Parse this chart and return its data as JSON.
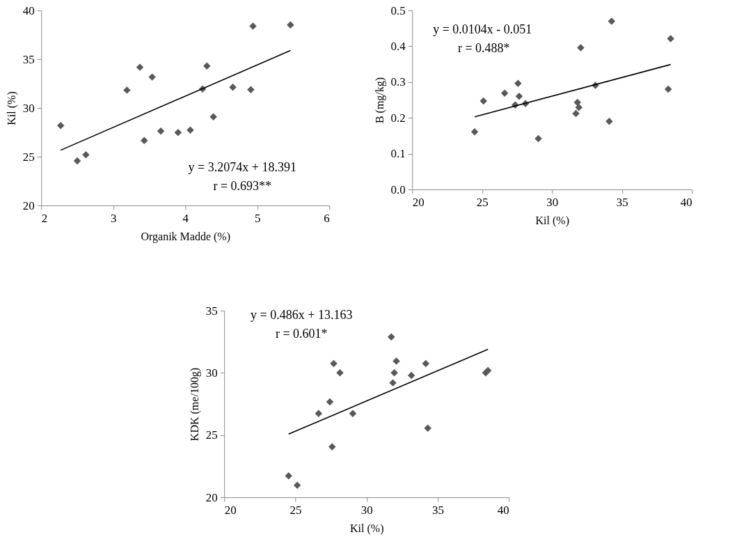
{
  "chart_data": [
    {
      "type": "scatter",
      "xlabel": "Organik Madde (%)",
      "ylabel": "Kil (%)",
      "xlim": [
        2,
        6
      ],
      "ylim": [
        20,
        40
      ],
      "xticks": [
        2,
        3,
        4,
        5,
        6
      ],
      "yticks": [
        20,
        25,
        30,
        35,
        40
      ],
      "marker": "diamond",
      "annotations": [
        "y = 3.2074x + 18.391",
        "r = 0.693**"
      ],
      "series": [
        {
          "color": "#595959",
          "x": [
            2.27,
            2.5,
            2.62,
            3.19,
            3.37,
            3.43,
            3.54,
            3.66,
            3.9,
            4.07,
            4.24,
            4.3,
            4.39,
            4.66,
            4.91,
            4.94,
            5.46
          ],
          "values": [
            28.19,
            24.57,
            25.19,
            31.83,
            34.17,
            26.66,
            33.17,
            27.62,
            27.48,
            27.74,
            31.95,
            34.31,
            29.09,
            32.12,
            31.88,
            38.4,
            38.52
          ]
        },
        {
          "type": "line",
          "marker": "none",
          "color": "#000000",
          "x": [
            2.27,
            5.46
          ],
          "values": [
            25.67,
            35.9
          ]
        }
      ]
    },
    {
      "type": "scatter",
      "xlabel": "Kil (%)",
      "ylabel": "B (mg/kg)",
      "xlim": [
        20,
        40
      ],
      "ylim": [
        0,
        0.5
      ],
      "xticks": [
        20,
        25,
        30,
        35,
        40
      ],
      "yticks": [
        {
          "value": 0,
          "label": "0.0"
        },
        0.1,
        0.2,
        0.3,
        0.4,
        0.5
      ],
      "marker": "diamond",
      "annotations": [
        "y = 0.0104x - 0.051",
        "r = 0.488*"
      ],
      "series": [
        {
          "color": "#595959",
          "x": [
            24.47,
            25.1,
            26.61,
            27.37,
            27.57,
            27.65,
            28.1,
            29.02,
            31.71,
            31.82,
            31.92,
            32.05,
            33.1,
            34.09,
            34.26,
            38.31,
            38.48
          ],
          "values": [
            0.161,
            0.247,
            0.269,
            0.236,
            0.296,
            0.26,
            0.24,
            0.142,
            0.212,
            0.243,
            0.229,
            0.396,
            0.291,
            0.19,
            0.47,
            0.28,
            0.421
          ]
        },
        {
          "type": "line",
          "marker": "none",
          "color": "#000000",
          "x": [
            24.47,
            38.48
          ],
          "values": [
            0.203,
            0.349
          ]
        }
      ]
    },
    {
      "type": "scatter",
      "xlabel": "Kil (%)",
      "ylabel": "KDK (me/100g)",
      "xlim": [
        20,
        40
      ],
      "ylim": [
        20,
        35
      ],
      "xticks": [
        20,
        25,
        30,
        35,
        40
      ],
      "yticks": [
        20,
        25,
        30,
        35
      ],
      "marker": "diamond",
      "annotations": [
        "y = 0.486x + 13.163",
        "r = 0.601*"
      ],
      "series": [
        {
          "color": "#595959",
          "x": [
            24.52,
            25.13,
            26.63,
            27.42,
            27.58,
            27.69,
            28.13,
            29.03,
            31.74,
            31.85,
            31.95,
            32.09,
            33.15,
            34.16,
            34.3,
            38.37,
            38.53
          ],
          "values": [
            21.72,
            20.97,
            26.73,
            27.67,
            24.06,
            30.75,
            30.01,
            26.73,
            32.89,
            29.2,
            30.01,
            30.94,
            29.8,
            30.75,
            25.55,
            30.01,
            30.18
          ]
        },
        {
          "type": "line",
          "marker": "none",
          "color": "#000000",
          "x": [
            24.52,
            38.53
          ],
          "values": [
            25.08,
            31.89
          ]
        }
      ]
    }
  ]
}
